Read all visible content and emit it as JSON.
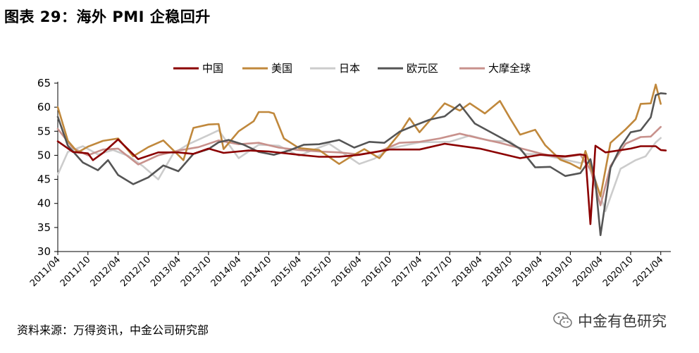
{
  "title": "图表 29：海外 PMI 企稳回升",
  "source": "资料来源：万得资讯，中金公司研究部",
  "watermark": "中金有色研究",
  "watermark_icon": "wechat-icon",
  "chart_data": {
    "type": "line",
    "title": "",
    "xlabel": "",
    "ylabel": "",
    "ylim": [
      30,
      65
    ],
    "yticks": [
      30,
      35,
      40,
      45,
      50,
      55,
      60,
      65
    ],
    "grid": false,
    "legend_position": "top",
    "x_start": "2011/04",
    "x_end": "2021/06",
    "x_tick_labels": [
      "2011/04",
      "2011/10",
      "2012/04",
      "2012/10",
      "2013/04",
      "2013/10",
      "2014/04",
      "2014/10",
      "2015/04",
      "2015/10",
      "2016/04",
      "2016/10",
      "2017/04",
      "2017/10",
      "2018/04",
      "2018/10",
      "2019/04",
      "2019/10",
      "2020/04",
      "2020/10",
      "2021/04"
    ],
    "series": [
      {
        "name": "中国",
        "color": "#8b0000",
        "points": [
          [
            "2011/04",
            52.9
          ],
          [
            "2011/07",
            50.7
          ],
          [
            "2011/10",
            50.4
          ],
          [
            "2011/11",
            49.0
          ],
          [
            "2012/01",
            50.5
          ],
          [
            "2012/04",
            53.3
          ],
          [
            "2012/08",
            49.2
          ],
          [
            "2012/12",
            50.6
          ],
          [
            "2013/04",
            50.6
          ],
          [
            "2013/07",
            50.3
          ],
          [
            "2013/10",
            51.4
          ],
          [
            "2014/01",
            50.5
          ],
          [
            "2014/06",
            51.0
          ],
          [
            "2014/10",
            50.8
          ],
          [
            "2015/04",
            50.1
          ],
          [
            "2015/08",
            49.7
          ],
          [
            "2015/12",
            49.7
          ],
          [
            "2016/04",
            50.1
          ],
          [
            "2016/10",
            51.2
          ],
          [
            "2017/04",
            51.2
          ],
          [
            "2017/09",
            52.4
          ],
          [
            "2018/04",
            51.4
          ],
          [
            "2018/12",
            49.4
          ],
          [
            "2019/04",
            50.1
          ],
          [
            "2019/09",
            49.8
          ],
          [
            "2019/12",
            50.2
          ],
          [
            "2020/01",
            50.0
          ],
          [
            "2020/02",
            35.7
          ],
          [
            "2020/03",
            52.0
          ],
          [
            "2020/05",
            50.6
          ],
          [
            "2020/10",
            51.4
          ],
          [
            "2020/12",
            51.9
          ],
          [
            "2021/03",
            51.9
          ],
          [
            "2021/04",
            51.1
          ],
          [
            "2021/05",
            51.0
          ]
        ]
      },
      {
        "name": "美国",
        "color": "#c0883c",
        "points": [
          [
            "2011/04",
            60.0
          ],
          [
            "2011/06",
            53.0
          ],
          [
            "2011/08",
            50.6
          ],
          [
            "2011/10",
            51.8
          ],
          [
            "2012/01",
            53.0
          ],
          [
            "2012/04",
            53.5
          ],
          [
            "2012/07",
            49.8
          ],
          [
            "2012/10",
            51.7
          ],
          [
            "2013/01",
            53.1
          ],
          [
            "2013/05",
            49.0
          ],
          [
            "2013/07",
            55.7
          ],
          [
            "2013/10",
            56.4
          ],
          [
            "2013/12",
            56.5
          ],
          [
            "2014/01",
            51.3
          ],
          [
            "2014/04",
            55.0
          ],
          [
            "2014/07",
            57.1
          ],
          [
            "2014/08",
            59.0
          ],
          [
            "2014/10",
            59.0
          ],
          [
            "2014/11",
            58.7
          ],
          [
            "2015/01",
            53.5
          ],
          [
            "2015/04",
            51.5
          ],
          [
            "2015/08",
            51.1
          ],
          [
            "2015/12",
            48.2
          ],
          [
            "2016/02",
            49.5
          ],
          [
            "2016/05",
            51.3
          ],
          [
            "2016/08",
            49.4
          ],
          [
            "2016/12",
            54.5
          ],
          [
            "2017/02",
            57.7
          ],
          [
            "2017/04",
            54.8
          ],
          [
            "2017/09",
            60.8
          ],
          [
            "2017/12",
            59.3
          ],
          [
            "2018/02",
            60.8
          ],
          [
            "2018/05",
            58.7
          ],
          [
            "2018/08",
            61.3
          ],
          [
            "2018/10",
            57.7
          ],
          [
            "2018/12",
            54.3
          ],
          [
            "2019/03",
            55.3
          ],
          [
            "2019/05",
            52.1
          ],
          [
            "2019/08",
            49.1
          ],
          [
            "2019/10",
            48.3
          ],
          [
            "2019/12",
            47.2
          ],
          [
            "2020/01",
            50.9
          ],
          [
            "2020/04",
            41.5
          ],
          [
            "2020/06",
            52.6
          ],
          [
            "2020/09",
            55.4
          ],
          [
            "2020/11",
            57.5
          ],
          [
            "2020/12",
            60.7
          ],
          [
            "2021/02",
            60.8
          ],
          [
            "2021/03",
            64.7
          ],
          [
            "2021/04",
            60.7
          ]
        ]
      },
      {
        "name": "日本",
        "color": "#cccccc",
        "points": [
          [
            "2011/04",
            46.0
          ],
          [
            "2011/06",
            50.7
          ],
          [
            "2011/09",
            51.9
          ],
          [
            "2011/12",
            50.2
          ],
          [
            "2012/03",
            51.1
          ],
          [
            "2012/06",
            49.9
          ],
          [
            "2012/09",
            47.7
          ],
          [
            "2012/12",
            45.0
          ],
          [
            "2013/03",
            50.4
          ],
          [
            "2013/06",
            52.3
          ],
          [
            "2013/10",
            54.2
          ],
          [
            "2013/12",
            55.2
          ],
          [
            "2014/04",
            49.4
          ],
          [
            "2014/08",
            52.2
          ],
          [
            "2014/12",
            52.0
          ],
          [
            "2015/04",
            49.9
          ],
          [
            "2015/07",
            51.2
          ],
          [
            "2015/10",
            52.4
          ],
          [
            "2016/04",
            48.2
          ],
          [
            "2016/07",
            49.3
          ],
          [
            "2016/10",
            51.4
          ],
          [
            "2017/04",
            52.7
          ],
          [
            "2017/10",
            52.8
          ],
          [
            "2018/02",
            54.1
          ],
          [
            "2018/06",
            53.0
          ],
          [
            "2018/10",
            52.9
          ],
          [
            "2019/01",
            50.3
          ],
          [
            "2019/04",
            50.2
          ],
          [
            "2019/08",
            49.3
          ],
          [
            "2019/12",
            48.4
          ],
          [
            "2020/01",
            48.8
          ],
          [
            "2020/03",
            44.8
          ],
          [
            "2020/05",
            38.4
          ],
          [
            "2020/08",
            47.2
          ],
          [
            "2020/11",
            49.0
          ],
          [
            "2021/01",
            49.8
          ],
          [
            "2021/03",
            52.7
          ],
          [
            "2021/04",
            53.6
          ]
        ]
      },
      {
        "name": "欧元区",
        "color": "#555555",
        "points": [
          [
            "2011/04",
            58.0
          ],
          [
            "2011/06",
            52.0
          ],
          [
            "2011/09",
            48.5
          ],
          [
            "2011/12",
            46.9
          ],
          [
            "2012/02",
            49.0
          ],
          [
            "2012/04",
            45.9
          ],
          [
            "2012/07",
            44.0
          ],
          [
            "2012/10",
            45.4
          ],
          [
            "2013/01",
            47.9
          ],
          [
            "2013/04",
            46.7
          ],
          [
            "2013/07",
            50.3
          ],
          [
            "2013/10",
            51.3
          ],
          [
            "2013/12",
            52.7
          ],
          [
            "2014/02",
            53.2
          ],
          [
            "2014/05",
            52.2
          ],
          [
            "2014/08",
            50.7
          ],
          [
            "2014/11",
            50.1
          ],
          [
            "2015/02",
            51.0
          ],
          [
            "2015/05",
            52.2
          ],
          [
            "2015/08",
            52.3
          ],
          [
            "2015/12",
            53.2
          ],
          [
            "2016/03",
            51.6
          ],
          [
            "2016/06",
            52.8
          ],
          [
            "2016/09",
            52.6
          ],
          [
            "2016/12",
            54.9
          ],
          [
            "2017/03",
            56.2
          ],
          [
            "2017/06",
            57.4
          ],
          [
            "2017/09",
            58.1
          ],
          [
            "2017/12",
            60.6
          ],
          [
            "2018/03",
            56.6
          ],
          [
            "2018/06",
            54.9
          ],
          [
            "2018/09",
            53.2
          ],
          [
            "2018/12",
            51.4
          ],
          [
            "2019/03",
            47.5
          ],
          [
            "2019/06",
            47.6
          ],
          [
            "2019/09",
            45.7
          ],
          [
            "2019/12",
            46.3
          ],
          [
            "2020/02",
            49.2
          ],
          [
            "2020/03",
            44.5
          ],
          [
            "2020/04",
            33.4
          ],
          [
            "2020/06",
            47.4
          ],
          [
            "2020/08",
            51.7
          ],
          [
            "2020/10",
            54.8
          ],
          [
            "2020/12",
            55.2
          ],
          [
            "2021/02",
            57.9
          ],
          [
            "2021/03",
            62.5
          ],
          [
            "2021/04",
            62.9
          ],
          [
            "2021/05",
            62.8
          ]
        ]
      },
      {
        "name": "大摩全球",
        "color": "#c8918c",
        "points": [
          [
            "2011/04",
            55.5
          ],
          [
            "2011/07",
            51.5
          ],
          [
            "2011/10",
            50.0
          ],
          [
            "2012/01",
            51.2
          ],
          [
            "2012/04",
            51.4
          ],
          [
            "2012/08",
            48.1
          ],
          [
            "2012/12",
            50.0
          ],
          [
            "2013/04",
            51.0
          ],
          [
            "2013/08",
            51.7
          ],
          [
            "2013/12",
            53.1
          ],
          [
            "2014/04",
            52.3
          ],
          [
            "2014/08",
            52.6
          ],
          [
            "2014/12",
            51.6
          ],
          [
            "2015/04",
            51.1
          ],
          [
            "2015/08",
            50.8
          ],
          [
            "2015/12",
            50.6
          ],
          [
            "2016/04",
            50.2
          ],
          [
            "2016/08",
            50.8
          ],
          [
            "2016/12",
            52.6
          ],
          [
            "2017/04",
            52.8
          ],
          [
            "2017/08",
            53.5
          ],
          [
            "2017/12",
            54.5
          ],
          [
            "2018/04",
            53.5
          ],
          [
            "2018/08",
            52.6
          ],
          [
            "2018/12",
            51.5
          ],
          [
            "2019/04",
            50.4
          ],
          [
            "2019/08",
            49.5
          ],
          [
            "2019/12",
            50.1
          ],
          [
            "2020/02",
            47.1
          ],
          [
            "2020/04",
            39.6
          ],
          [
            "2020/06",
            47.8
          ],
          [
            "2020/09",
            52.4
          ],
          [
            "2020/12",
            53.8
          ],
          [
            "2021/02",
            53.9
          ],
          [
            "2021/04",
            55.9
          ]
        ]
      }
    ]
  }
}
